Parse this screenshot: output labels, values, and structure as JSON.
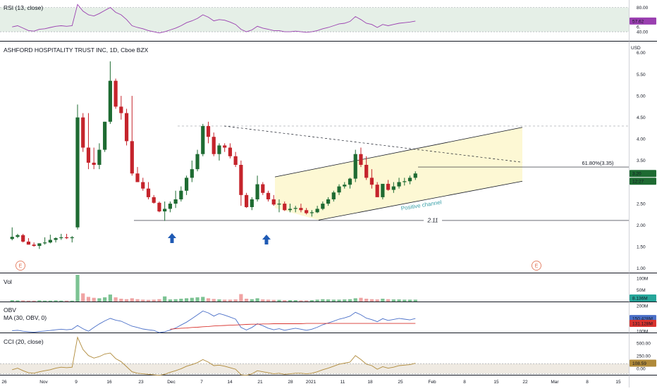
{
  "colors": {
    "up": "#1e6b32",
    "down": "#c5242c",
    "rsi_line": "#9a3fb0",
    "rsi_band": "#cfe2d3",
    "obv_line": "#4a6fc8",
    "obv_ma": "#d9342f",
    "cci_line": "#b08a3a",
    "cci_band": "#e5dccf",
    "channel_fill": "#fdf7cf",
    "arrow": "#1f5ab4",
    "vol_up": "#7cc393",
    "vol_down": "#f1a3a3",
    "earnings": "#e06a4a"
  },
  "panes": {
    "rsi": {
      "label": "RSI (13, close)"
    },
    "main": {
      "label": "ASHFORD HOSPITALITY TRUST INC, 1D, Cboe BZX"
    },
    "vol": {
      "label": "Vol"
    },
    "obv": {
      "label": "OBV",
      "label2": "MA (30, OBV, 0)"
    },
    "cci": {
      "label": "CCI (20, close)"
    }
  },
  "currency": "USD",
  "x_ticks": [
    "26",
    "Nov",
    "9",
    "16",
    "23",
    "Dec",
    "7",
    "14",
    "21",
    "28",
    "2021",
    "11",
    "18",
    "25",
    "Feb",
    "8",
    "15",
    "22",
    "Mar",
    "8",
    "15"
  ],
  "earnings_marker": "E",
  "annotations": {
    "fib_label": "61.80%(3.35)",
    "support_label": "2.11",
    "channel_label": "Positive channel"
  },
  "price_badges": {
    "last": "3.20",
    "time": "12:27"
  },
  "indicator_badges": {
    "rsi": "57.62",
    "vol": "8.136M",
    "obv": "150.428M",
    "obv_ma": "131.128M",
    "cci": "108.59"
  },
  "axis_ticks": {
    "rsi": [
      "80.00",
      "40.00"
    ],
    "main": [
      "6.",
      "6.00",
      "5.50",
      "5.00",
      "4.50",
      "4.00",
      "3.50",
      "3.00",
      "2.50",
      "2.00",
      "1.50",
      "1.00"
    ],
    "vol": [
      "100M",
      "50M"
    ],
    "obv": [
      "200M",
      "100M"
    ],
    "cci": [
      "500.00",
      "250.00",
      "0.00"
    ]
  },
  "chart_data": {
    "type": "candlestick",
    "title": "ASHFORD HOSPITALITY TRUST INC, 1D, Cboe BZX",
    "ylabel": "USD",
    "ylim": [
      0.9,
      6.6
    ],
    "dates": [
      "Oct 22",
      "Oct 23",
      "Oct 26",
      "Oct 27",
      "Oct 28",
      "Oct 29",
      "Oct 30",
      "Nov 2",
      "Nov 3",
      "Nov 4",
      "Nov 5",
      "Nov 6",
      "Nov 9",
      "Nov 10",
      "Nov 11",
      "Nov 12",
      "Nov 13",
      "Nov 16",
      "Nov 17",
      "Nov 18",
      "Nov 19",
      "Nov 20",
      "Nov 23",
      "Nov 24",
      "Nov 25",
      "Nov 27",
      "Nov 30",
      "Dec 1",
      "Dec 2",
      "Dec 3",
      "Dec 4",
      "Dec 7",
      "Dec 8",
      "Dec 9",
      "Dec 10",
      "Dec 11",
      "Dec 14",
      "Dec 15",
      "Dec 16",
      "Dec 17",
      "Dec 18",
      "Dec 21",
      "Dec 22",
      "Dec 23",
      "Dec 24",
      "Dec 28",
      "Dec 29",
      "Dec 30",
      "Dec 31",
      "Jan 4",
      "Jan 5",
      "Jan 6",
      "Jan 7",
      "Jan 8",
      "Jan 11",
      "Jan 12",
      "Jan 13",
      "Jan 14",
      "Jan 15",
      "Jan 19",
      "Jan 20",
      "Jan 21",
      "Jan 22",
      "Jan 25",
      "Jan 26",
      "Jan 27",
      "Jan 28",
      "Jan 29",
      "Feb 1",
      "Feb 2",
      "Feb 3",
      "Feb 4",
      "Feb 5",
      "Feb 8",
      "Feb 9"
    ],
    "open": [
      1.68,
      1.73,
      1.77,
      1.62,
      1.55,
      1.52,
      1.58,
      1.6,
      1.66,
      1.7,
      1.72,
      1.7,
      1.95,
      4.5,
      3.8,
      3.45,
      3.4,
      3.75,
      4.4,
      5.35,
      4.75,
      4.6,
      3.95,
      3.2,
      3.0,
      2.85,
      2.65,
      2.52,
      2.32,
      2.38,
      2.5,
      2.6,
      2.8,
      3.1,
      3.3,
      3.65,
      4.3,
      4.05,
      3.65,
      3.85,
      3.8,
      3.6,
      3.4,
      2.7,
      2.42,
      2.6,
      2.95,
      2.75,
      2.6,
      2.48,
      2.5,
      2.35,
      2.38,
      2.4,
      2.35,
      2.28,
      2.3,
      2.38,
      2.5,
      2.6,
      2.76,
      2.9,
      2.94,
      3.08,
      3.65,
      3.4,
      3.1,
      2.94,
      2.65,
      2.96,
      2.82,
      2.9,
      3.0,
      3.02,
      3.1
    ],
    "high": [
      1.95,
      1.8,
      1.8,
      1.7,
      1.6,
      1.58,
      1.72,
      1.78,
      1.72,
      1.8,
      1.8,
      1.75,
      4.8,
      4.6,
      4.6,
      3.8,
      3.9,
      4.4,
      5.8,
      5.4,
      5.0,
      4.7,
      5.0,
      3.35,
      3.1,
      3.0,
      2.7,
      2.55,
      2.55,
      2.55,
      2.8,
      2.9,
      3.15,
      3.5,
      3.75,
      4.35,
      4.4,
      4.15,
      3.9,
      3.9,
      3.9,
      3.7,
      3.5,
      2.75,
      2.65,
      3.15,
      3.0,
      2.8,
      2.7,
      2.6,
      2.55,
      2.5,
      2.45,
      2.5,
      2.4,
      2.35,
      2.45,
      2.55,
      2.65,
      2.8,
      2.95,
      3.0,
      3.1,
      3.75,
      3.8,
      3.6,
      3.3,
      3.0,
      2.95,
      3.05,
      3.0,
      3.1,
      3.1,
      3.15,
      3.25
    ],
    "low": [
      1.65,
      1.7,
      1.6,
      1.55,
      1.5,
      1.45,
      1.55,
      1.58,
      1.6,
      1.66,
      1.68,
      1.6,
      1.9,
      3.7,
      3.3,
      3.3,
      3.3,
      3.7,
      4.35,
      4.7,
      4.45,
      3.85,
      3.15,
      3.0,
      2.8,
      2.6,
      2.5,
      2.3,
      2.1,
      2.3,
      2.4,
      2.55,
      2.7,
      3.0,
      3.25,
      3.6,
      3.9,
      3.6,
      3.5,
      3.7,
      3.55,
      3.35,
      2.45,
      2.4,
      2.35,
      2.55,
      2.7,
      2.55,
      2.45,
      2.3,
      2.33,
      2.3,
      2.3,
      2.3,
      2.25,
      2.2,
      2.28,
      2.35,
      2.45,
      2.55,
      2.7,
      2.85,
      2.85,
      3.0,
      3.35,
      3.05,
      2.85,
      2.7,
      2.6,
      2.8,
      2.75,
      2.85,
      2.92,
      2.95,
      3.05
    ],
    "close": [
      1.73,
      1.77,
      1.62,
      1.55,
      1.52,
      1.58,
      1.6,
      1.66,
      1.7,
      1.72,
      1.7,
      1.72,
      4.5,
      3.8,
      3.45,
      3.4,
      3.75,
      4.4,
      5.35,
      4.75,
      4.6,
      3.95,
      3.2,
      3.0,
      2.85,
      2.65,
      2.52,
      2.32,
      2.38,
      2.5,
      2.6,
      2.8,
      3.1,
      3.3,
      3.65,
      4.3,
      4.05,
      3.65,
      3.85,
      3.8,
      3.6,
      3.4,
      2.7,
      2.42,
      2.6,
      2.95,
      2.75,
      2.6,
      2.48,
      2.5,
      2.35,
      2.38,
      2.4,
      2.35,
      2.28,
      2.3,
      2.38,
      2.5,
      2.6,
      2.76,
      2.9,
      2.94,
      3.08,
      3.65,
      3.4,
      3.1,
      2.94,
      2.65,
      2.96,
      2.82,
      2.9,
      3.0,
      3.02,
      3.1,
      3.2
    ],
    "volume_m": [
      6,
      5,
      5,
      4,
      4,
      5,
      4,
      4,
      5,
      4,
      4,
      4,
      115,
      35,
      20,
      16,
      14,
      18,
      30,
      18,
      12,
      10,
      14,
      10,
      8,
      7,
      8,
      10,
      22,
      9,
      10,
      12,
      14,
      16,
      18,
      20,
      14,
      11,
      9,
      8,
      8,
      9,
      32,
      12,
      10,
      14,
      9,
      8,
      7,
      7,
      6,
      6,
      6,
      5,
      5,
      6,
      8,
      10,
      9,
      8,
      8,
      9,
      10,
      14,
      16,
      12,
      10,
      9,
      12,
      10,
      9,
      9,
      8,
      8,
      8
    ],
    "rsi": {
      "name": "RSI (13, close)",
      "ylim": [
        25,
        90
      ],
      "bands": [
        40,
        80
      ],
      "values": [
        48,
        50,
        46,
        42,
        41,
        44,
        45,
        47,
        49,
        50,
        49,
        50,
        85,
        74,
        68,
        66,
        70,
        75,
        80,
        72,
        68,
        60,
        50,
        47,
        45,
        42,
        40,
        38,
        40,
        43,
        46,
        50,
        55,
        58,
        62,
        68,
        64,
        58,
        60,
        59,
        56,
        52,
        44,
        40,
        43,
        49,
        46,
        44,
        42,
        42,
        40,
        40,
        41,
        40,
        39,
        40,
        42,
        45,
        47,
        50,
        53,
        54,
        57,
        65,
        60,
        54,
        52,
        47,
        52,
        50,
        52,
        54,
        55,
        56,
        57.62
      ]
    },
    "obv": {
      "name": "OBV",
      "ma_name": "MA (30, OBV, 0)",
      "ylim": [
        95,
        215
      ],
      "ma_start_index": 29,
      "values": [
        102,
        104,
        100,
        98,
        96,
        99,
        101,
        103,
        106,
        108,
        106,
        108,
        123,
        110,
        100,
        115,
        129,
        141,
        151,
        144,
        140,
        130,
        120,
        115,
        109,
        106,
        103,
        95,
        98,
        105,
        113,
        125,
        136,
        150,
        165,
        180,
        173,
        160,
        170,
        164,
        156,
        148,
        115,
        105,
        115,
        130,
        122,
        112,
        106,
        110,
        104,
        108,
        112,
        108,
        104,
        108,
        116,
        126,
        133,
        140,
        148,
        153,
        160,
        175,
        165,
        152,
        146,
        138,
        150,
        143,
        147,
        151,
        148,
        145,
        150.428
      ],
      "ma_values": [
        108,
        110,
        112,
        113,
        115,
        116,
        118,
        119,
        121,
        122,
        123,
        124,
        125,
        126,
        127,
        128,
        128,
        129,
        129,
        130,
        130,
        130,
        130,
        130,
        130,
        131,
        131,
        131,
        131,
        131,
        131,
        131,
        131,
        131,
        131,
        131,
        131,
        131,
        131,
        131,
        131,
        131,
        131,
        131,
        131,
        131.128
      ]
    },
    "cci": {
      "name": "CCI (20, close)",
      "ylim": [
        -120,
        700
      ],
      "bands": [
        100,
        -100
      ],
      "values": [
        -20,
        10,
        -40,
        -80,
        -90,
        -60,
        -40,
        -20,
        10,
        30,
        20,
        30,
        620,
        380,
        260,
        210,
        240,
        290,
        310,
        200,
        140,
        40,
        -60,
        -90,
        -100,
        -110,
        -120,
        -130,
        -110,
        -70,
        -40,
        0,
        50,
        80,
        120,
        180,
        130,
        60,
        70,
        50,
        20,
        -10,
        -120,
        -130,
        -100,
        -40,
        -60,
        -80,
        -100,
        -90,
        -110,
        -100,
        -90,
        -90,
        -100,
        -90,
        -60,
        -20,
        10,
        50,
        90,
        110,
        130,
        260,
        180,
        90,
        60,
        -10,
        40,
        10,
        30,
        60,
        70,
        80,
        108.59
      ]
    },
    "annotations": [
      {
        "type": "fib_level",
        "label": "61.80%(3.35)",
        "value": 3.35
      },
      {
        "type": "support",
        "label": "2.11",
        "value": 2.11
      },
      {
        "type": "channel",
        "label": "Positive channel"
      },
      {
        "type": "resistance_dashed",
        "value": 4.3
      }
    ]
  }
}
